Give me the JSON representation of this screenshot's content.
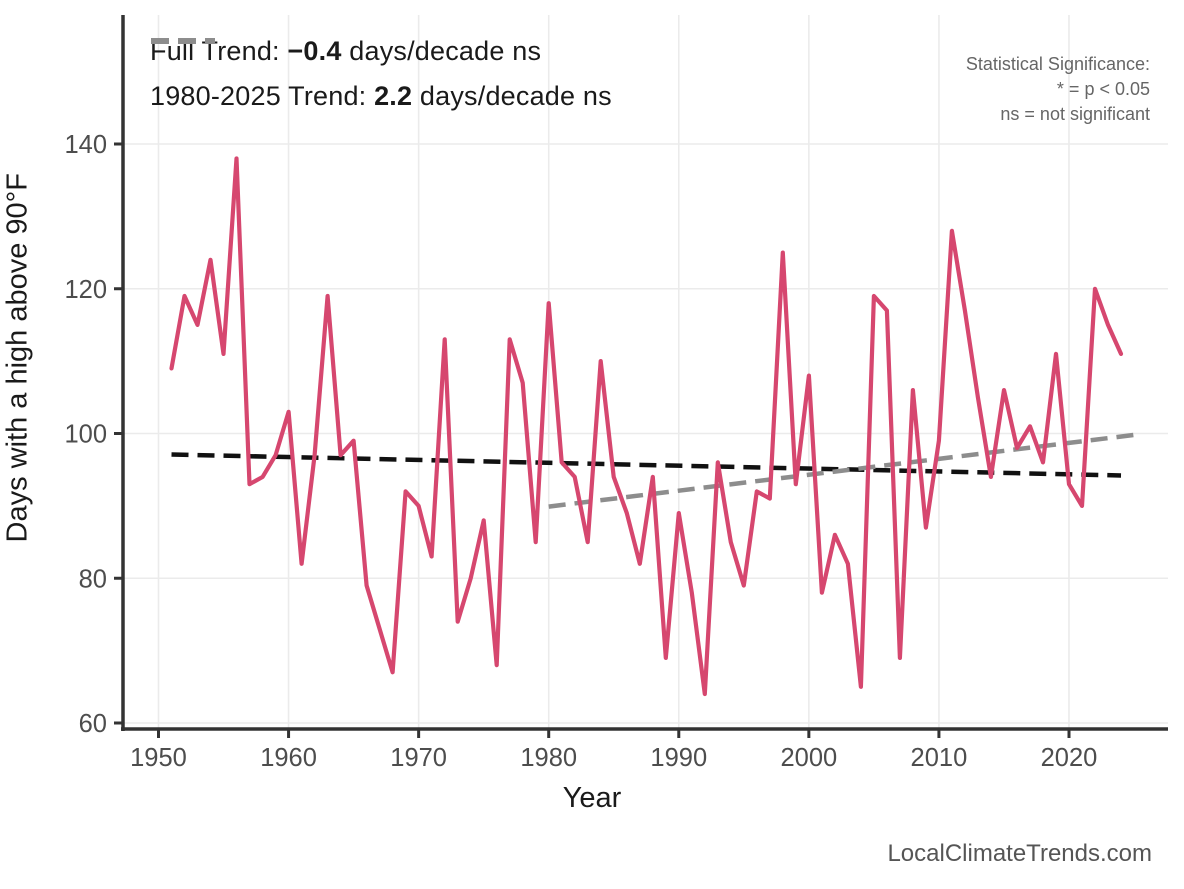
{
  "chart_data": {
    "type": "line",
    "title": "",
    "xlabel": "Year",
    "ylabel": "Days with a high above 90°F",
    "x_ticks": [
      1950,
      1960,
      1970,
      1980,
      1990,
      2000,
      2010,
      2020
    ],
    "y_ticks": [
      60,
      80,
      100,
      120,
      140
    ],
    "xlim": [
      1947.3,
      2027.6
    ],
    "ylim": [
      59,
      158
    ],
    "grid": "major only, light gray, white background",
    "legend_position": "top-left inside plot",
    "series": [
      {
        "name": "observed-days-above-90F",
        "color": "#d6476f",
        "style": "solid",
        "years": [
          1951,
          1952,
          1953,
          1954,
          1955,
          1956,
          1957,
          1958,
          1959,
          1960,
          1961,
          1962,
          1963,
          1964,
          1965,
          1966,
          1967,
          1968,
          1969,
          1970,
          1971,
          1972,
          1973,
          1974,
          1975,
          1976,
          1977,
          1978,
          1979,
          1980,
          1981,
          1982,
          1983,
          1984,
          1985,
          1986,
          1987,
          1988,
          1989,
          1990,
          1991,
          1992,
          1993,
          1994,
          1995,
          1996,
          1997,
          1998,
          1999,
          2000,
          2001,
          2002,
          2003,
          2004,
          2005,
          2006,
          2007,
          2008,
          2009,
          2010,
          2011,
          2012,
          2013,
          2014,
          2015,
          2016,
          2017,
          2018,
          2019,
          2020,
          2021,
          2022,
          2023,
          2024
        ],
        "values": [
          109,
          119,
          115,
          124,
          111,
          138,
          93,
          94,
          97,
          103,
          82,
          97,
          119,
          97,
          99,
          79,
          73,
          67,
          92,
          90,
          83,
          113,
          74,
          80,
          88,
          68,
          113,
          107,
          85,
          118,
          96,
          94,
          85,
          110,
          94,
          89,
          82,
          94,
          69,
          89,
          78,
          64,
          96,
          85,
          79,
          92,
          91,
          125,
          93,
          108,
          78,
          86,
          82,
          65,
          119,
          117,
          69,
          106,
          87,
          99,
          128,
          117,
          105,
          94,
          106,
          98,
          101,
          96,
          111,
          93,
          90,
          120,
          115,
          111
        ]
      },
      {
        "name": "full-trend",
        "color": "#111111",
        "style": "dashed",
        "slope_days_per_decade": -0.4,
        "significance": "ns",
        "x": [
          1951,
          2024
        ],
        "y": [
          97.1,
          94.2
        ]
      },
      {
        "name": "trend-1980-2025",
        "color": "#8d8d8d",
        "style": "dashed",
        "slope_days_per_decade": 2.2,
        "significance": "ns",
        "x": [
          1980,
          2025
        ],
        "y": [
          89.9,
          99.8
        ]
      }
    ]
  },
  "legend": {
    "items": [
      {
        "color": "#111111",
        "prefix": "Full Trend: ",
        "value": "−0.4",
        "suffix": " days/decade ns"
      },
      {
        "color": "#8d8d8d",
        "prefix": "1980-2025 Trend: ",
        "value": "2.2",
        "suffix": " days/decade ns"
      }
    ]
  },
  "note": {
    "line1": "Statistical Significance:",
    "line2": "* = p < 0.05",
    "line3": "ns = not significant"
  },
  "axis": {
    "x_title": "Year",
    "y_title": "Days with a high above 90°F"
  },
  "watermark": "LocalClimateTrends.com",
  "colors": {
    "line": "#d6476f",
    "trend_full": "#111111",
    "trend_recent": "#8d8d8d",
    "grid": "#ebebeb",
    "axis": "#333333",
    "tick_text": "#4d4d4d",
    "note_text": "#666666",
    "watermark_text": "#555555"
  }
}
